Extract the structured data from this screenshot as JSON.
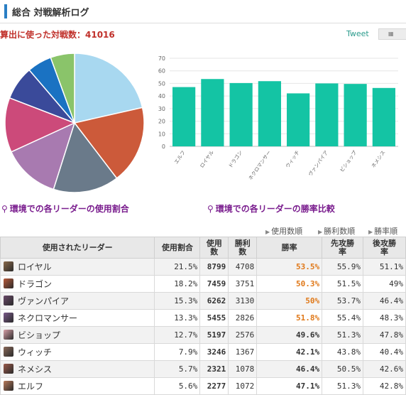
{
  "header": {
    "title": "総合 対戦解析ログ"
  },
  "battle_count": "算出に使った対戦数：41016",
  "tweet_label": "Tweet",
  "captions": {
    "pie": "環境での各リーダーの使用割合",
    "bar": "環境での各リーダーの勝率比較"
  },
  "sort_links": [
    "使用数順",
    "勝利数順",
    "勝率順"
  ],
  "table": {
    "headers": [
      "使用されたリーダー",
      "使用割合",
      "使用数",
      "勝利数",
      "勝率",
      "先攻勝率",
      "後攻勝率"
    ],
    "rows": [
      {
        "leader": "ロイヤル",
        "share": "21.5%",
        "uses": "8799",
        "wins": "4708",
        "winrate": "53.5%",
        "first": "55.9%",
        "second": "51.1%",
        "hi": true,
        "color": "#8a6a4a"
      },
      {
        "leader": "ドラゴン",
        "share": "18.2%",
        "uses": "7459",
        "wins": "3751",
        "winrate": "50.3%",
        "first": "51.5%",
        "second": "49%",
        "hi": true,
        "color": "#b85a3a"
      },
      {
        "leader": "ヴァンパイア",
        "share": "15.3%",
        "uses": "6262",
        "wins": "3130",
        "winrate": "50%",
        "first": "53.7%",
        "second": "46.4%",
        "hi": true,
        "color": "#6a4a6a"
      },
      {
        "leader": "ネクロマンサー",
        "share": "13.3%",
        "uses": "5455",
        "wins": "2826",
        "winrate": "51.8%",
        "first": "55.4%",
        "second": "48.3%",
        "hi": true,
        "color": "#7a5a8a"
      },
      {
        "leader": "ビショップ",
        "share": "12.7%",
        "uses": "5197",
        "wins": "2576",
        "winrate": "49.6%",
        "first": "51.3%",
        "second": "47.8%",
        "hi": false,
        "color": "#d8a0a8"
      },
      {
        "leader": "ウィッチ",
        "share": "7.9%",
        "uses": "3246",
        "wins": "1367",
        "winrate": "42.1%",
        "first": "43.8%",
        "second": "40.4%",
        "hi": false,
        "color": "#8a6a5a"
      },
      {
        "leader": "ネメシス",
        "share": "5.7%",
        "uses": "2321",
        "wins": "1078",
        "winrate": "46.4%",
        "first": "50.5%",
        "second": "42.6%",
        "hi": false,
        "color": "#9a5a4a"
      },
      {
        "leader": "エルフ",
        "share": "5.6%",
        "uses": "2277",
        "wins": "1072",
        "winrate": "47.1%",
        "first": "51.3%",
        "second": "42.8%",
        "hi": false,
        "color": "#b87a5a"
      }
    ]
  },
  "chart_data": [
    {
      "type": "pie",
      "categories": [
        "ロイヤル",
        "ドラゴン",
        "ヴァンパイア",
        "ネクロマンサー",
        "ビショップ",
        "ウィッチ",
        "ネメシス",
        "エルフ"
      ],
      "values": [
        21.5,
        18.2,
        15.3,
        13.3,
        12.7,
        7.9,
        5.7,
        5.6
      ],
      "colors": [
        "#a8d8f0",
        "#cc5a3a",
        "#6a7a8a",
        "#a87ab0",
        "#cc4a7a",
        "#3a4a9a",
        "#1a72c2",
        "#8ac46a"
      ],
      "title": ""
    },
    {
      "type": "bar",
      "categories": [
        "エルフ",
        "ロイヤル",
        "ドラゴン",
        "ネクロマンサー",
        "ウィッチ",
        "ヴァンパイア",
        "ビショップ",
        "ネメシス"
      ],
      "values": [
        47.1,
        53.5,
        50.3,
        51.8,
        42.1,
        50,
        49.6,
        46.4
      ],
      "ylim": [
        0,
        70
      ],
      "yticks": [
        0,
        10,
        20,
        30,
        40,
        50,
        60,
        70
      ],
      "color": "#14c4a4",
      "grid": true,
      "title": ""
    }
  ]
}
